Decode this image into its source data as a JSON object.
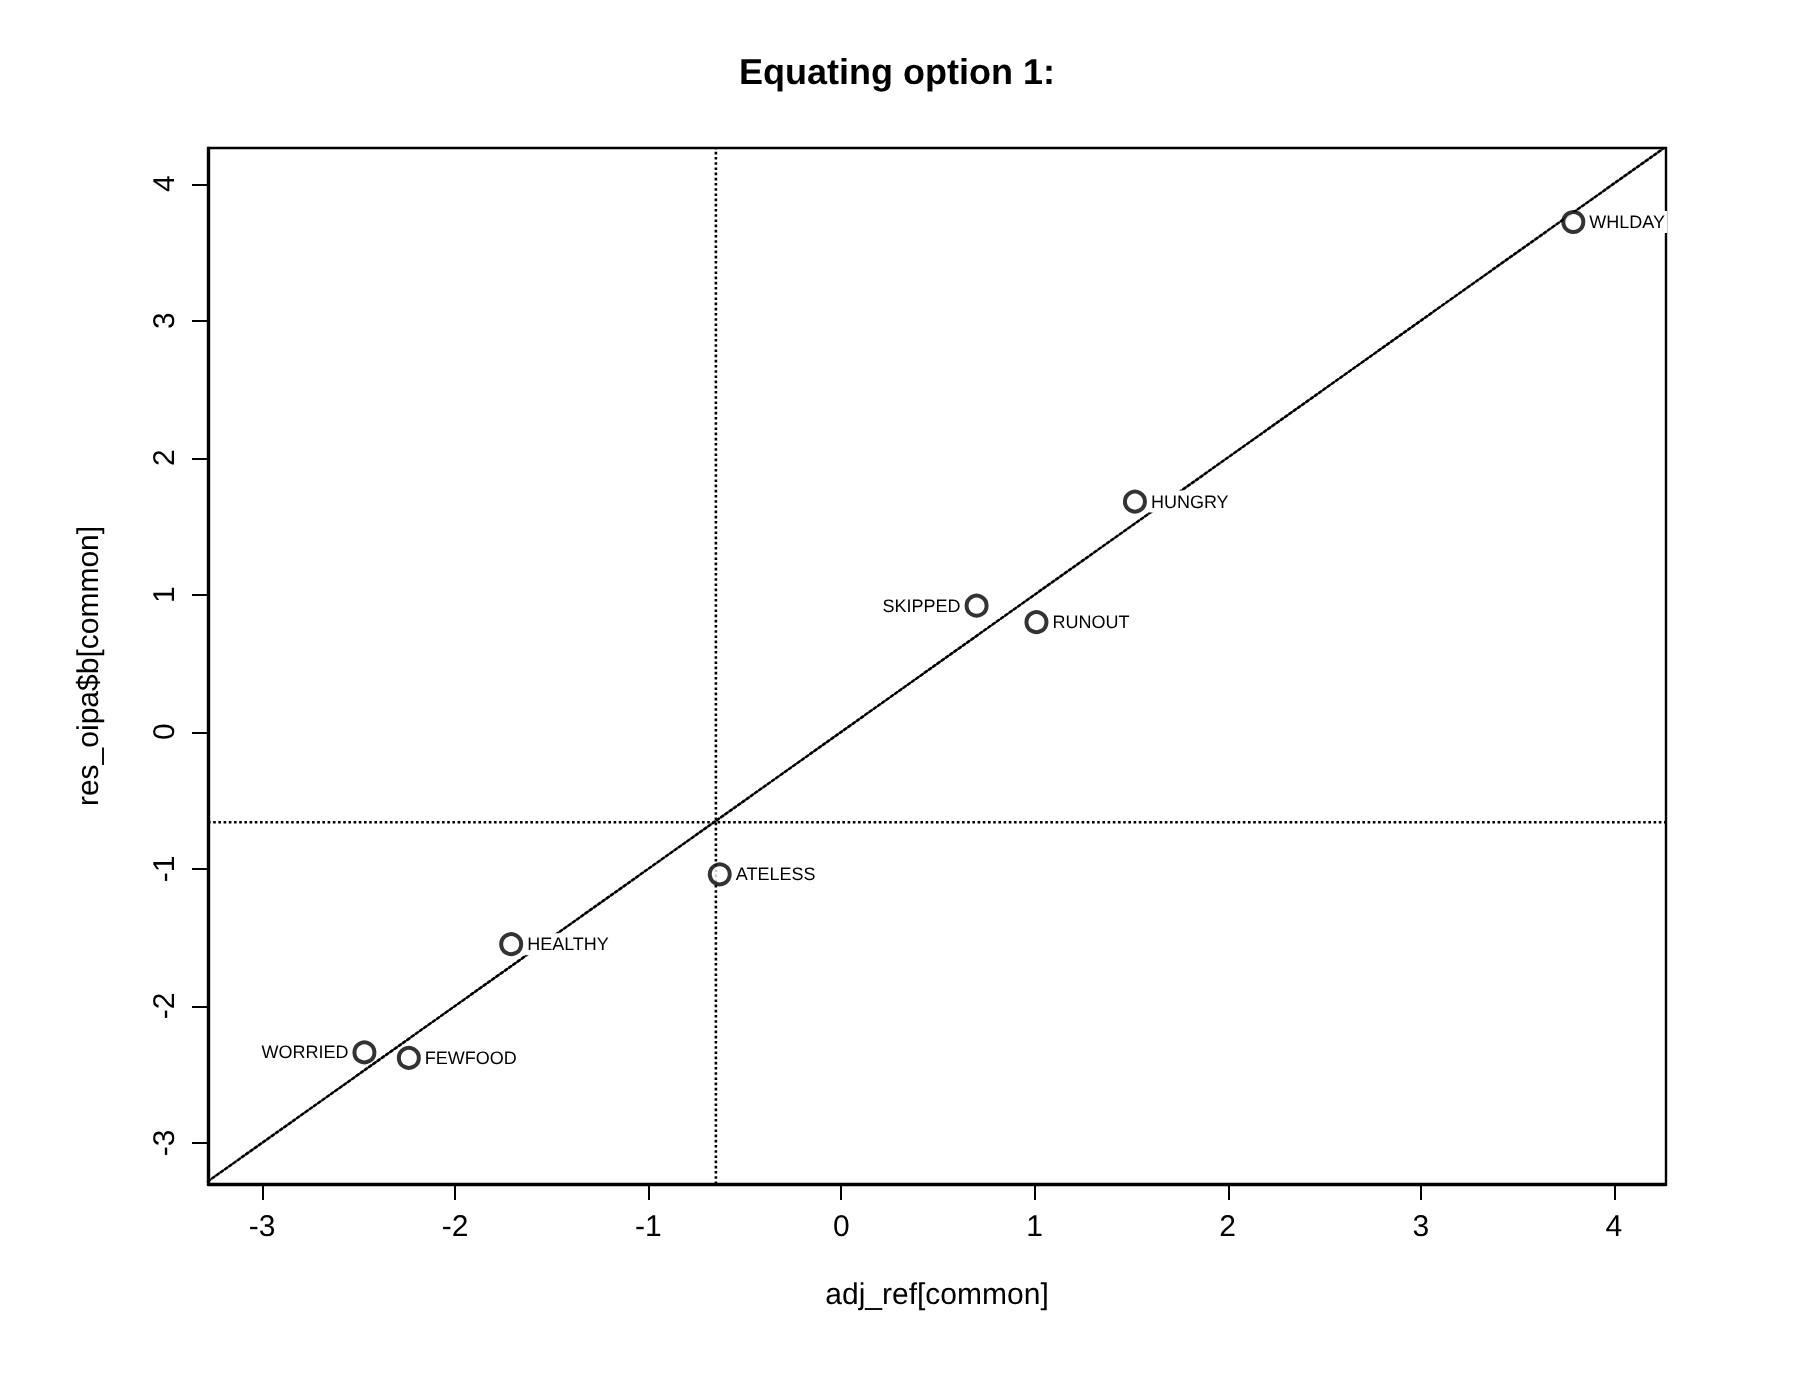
{
  "chart_data": {
    "type": "scatter",
    "title": "Equating option 1:",
    "xlabel": "adj_ref[common]",
    "ylabel": "res_oipa$b[common]",
    "xlim": [
      -3.28,
      4.27
    ],
    "ylim": [
      -3.3,
      4.26
    ],
    "xticks": [
      -3,
      -2,
      -1,
      0,
      1,
      2,
      3,
      4
    ],
    "yticks": [
      -3,
      -2,
      -1,
      0,
      1,
      2,
      3,
      4
    ],
    "grid": false,
    "marker": "circle",
    "series": [
      {
        "color": "#000000",
        "x": [
          3.79,
          1.52,
          0.7,
          1.01,
          -0.63,
          -1.71,
          -2.47,
          -2.24
        ],
        "values": [
          3.72,
          1.68,
          0.92,
          0.8,
          -1.04,
          -1.55,
          -2.34,
          -2.38
        ]
      },
      {
        "type": "line",
        "line_style": "dotted",
        "marker": "none",
        "color": "#000000",
        "x": [
          -3.28,
          4.26
        ],
        "values": [
          -3.28,
          4.26
        ]
      }
    ],
    "ref_lines": [
      {
        "axis": "x",
        "value": -0.65,
        "color": "#000000",
        "line_style": "dotted"
      },
      {
        "axis": "y",
        "value": -0.66,
        "color": "#000000",
        "line_style": "dotted"
      }
    ],
    "annotations": [
      {
        "text": "WHLDAY",
        "x": 3.79,
        "y": 3.72
      },
      {
        "text": "HUNGRY",
        "x": 1.52,
        "y": 1.68
      },
      {
        "text": "SKIPPED",
        "x": 0.7,
        "y": 0.92
      },
      {
        "text": "RUNOUT",
        "x": 1.01,
        "y": 0.8
      },
      {
        "text": "ATELESS",
        "x": -0.63,
        "y": -1.04
      },
      {
        "text": "HEALTHY",
        "x": -1.71,
        "y": -1.55
      },
      {
        "text": "WORRIED",
        "x": -2.47,
        "y": -2.34
      },
      {
        "text": "FEWFOOD",
        "x": -2.24,
        "y": -2.38
      }
    ]
  }
}
